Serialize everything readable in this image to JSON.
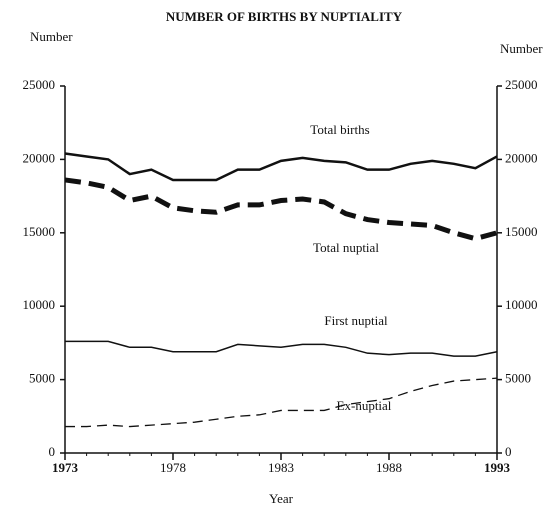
{
  "chart_data": {
    "type": "line",
    "title": "NUMBER OF BIRTHS BY NUPTIALITY",
    "y_label": "Number",
    "y2_label": "Number",
    "x_label": "Year",
    "x": [
      1973,
      1974,
      1975,
      1976,
      1977,
      1978,
      1979,
      1980,
      1981,
      1982,
      1983,
      1984,
      1985,
      1986,
      1987,
      1988,
      1989,
      1990,
      1991,
      1992,
      1993
    ],
    "xlim": [
      1973,
      1993
    ],
    "xticks": [
      1973,
      1978,
      1983,
      1988,
      1993
    ],
    "ylim": [
      0,
      25000
    ],
    "yticks": [
      0,
      5000,
      10000,
      15000,
      20000,
      25000
    ],
    "y2lim": [
      0,
      25000
    ],
    "y2ticks": [
      0,
      5000,
      10000,
      15000,
      20000,
      25000
    ],
    "series": [
      {
        "name": "Total births",
        "color": "#111111",
        "style": "solid-bold",
        "values": [
          20400,
          20200,
          20000,
          19000,
          19300,
          18600,
          18600,
          18600,
          19300,
          19300,
          19900,
          20100,
          19900,
          19800,
          19300,
          19300,
          19700,
          19900,
          19700,
          19400,
          20200
        ]
      },
      {
        "name": "Total nuptial",
        "color": "#111111",
        "style": "dashed-bold",
        "values": [
          18600,
          18400,
          18100,
          17200,
          17500,
          16700,
          16500,
          16400,
          16900,
          16900,
          17200,
          17300,
          17100,
          16300,
          15900,
          15700,
          15600,
          15500,
          15000,
          14600,
          15000
        ]
      },
      {
        "name": "First nuptial",
        "color": "#111111",
        "style": "solid",
        "values": [
          7600,
          7600,
          7600,
          7200,
          7200,
          6900,
          6900,
          6900,
          7400,
          7300,
          7200,
          7400,
          7400,
          7200,
          6800,
          6700,
          6800,
          6800,
          6600,
          6600,
          6900
        ]
      },
      {
        "name": "Ex-nuptial",
        "color": "#111111",
        "style": "dashed",
        "values": [
          1800,
          1800,
          1900,
          1800,
          1900,
          2000,
          2100,
          2300,
          2500,
          2600,
          2900,
          2900,
          2900,
          3300,
          3500,
          3700,
          4200,
          4600,
          4900,
          5000,
          5100
        ]
      }
    ]
  }
}
